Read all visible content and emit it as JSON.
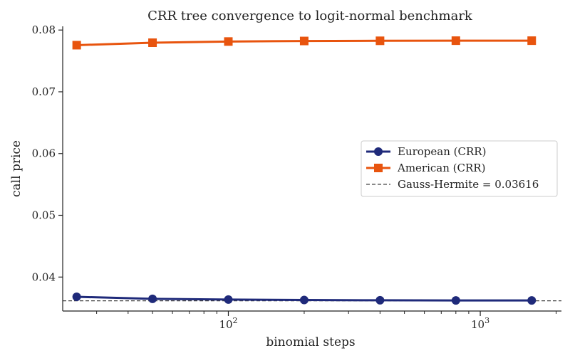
{
  "chart_data": {
    "type": "line",
    "title": "CRR tree convergence to logit-normal benchmark",
    "xlabel": "binomial steps",
    "ylabel": "call price",
    "xscale": "log",
    "xlim": [
      22,
      2100
    ],
    "ylim": [
      0.0345,
      0.0806
    ],
    "x": [
      25,
      50,
      100,
      200,
      400,
      800,
      1600
    ],
    "series": [
      {
        "name": "European (CRR)",
        "color": "#1f2a7a",
        "marker": "circle",
        "values": [
          0.0368,
          0.03648,
          0.03636,
          0.03628,
          0.03624,
          0.03622,
          0.03621
        ]
      },
      {
        "name": "American (CRR)",
        "color": "#e8540e",
        "marker": "square",
        "values": [
          0.07755,
          0.07795,
          0.07814,
          0.07823,
          0.07826,
          0.07828,
          0.07828
        ]
      }
    ],
    "reference_line": {
      "name": "Gauss-Hermite = 0.03616",
      "value": 0.03616,
      "color": "#444444",
      "style": "dashed"
    },
    "yticks": [
      "0.04",
      "0.05",
      "0.06",
      "0.07",
      "0.08"
    ],
    "ytick_values": [
      0.04,
      0.05,
      0.06,
      0.07,
      0.08
    ],
    "xticks": [
      {
        "value": 100,
        "base": "10",
        "exp": "2"
      },
      {
        "value": 1000,
        "base": "10",
        "exp": "3"
      }
    ],
    "grid": false,
    "legend_position": "center-right"
  }
}
